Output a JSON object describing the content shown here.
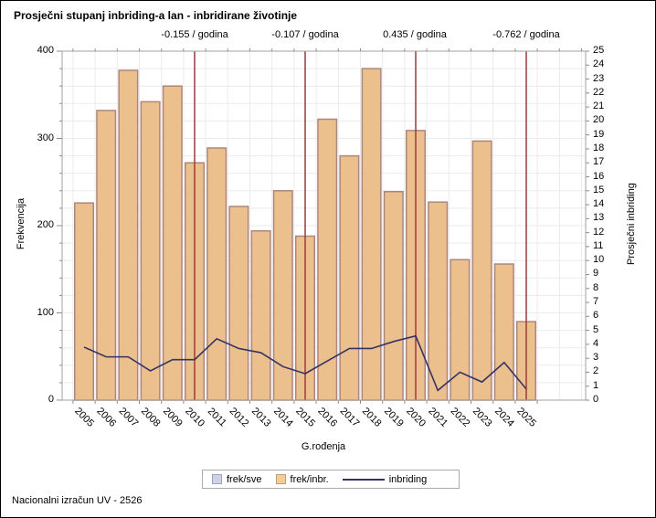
{
  "title": "Prosječni stupanj inbriding-a lan - inbridirane životinje",
  "footer": "Nacionalni izračun UV - 2526",
  "colors": {
    "bar_fill": "#ECC08C",
    "bar_border": "#AD867D",
    "line": "#333366",
    "ref_line": "#9C3A3A",
    "grid": "#EBEBEB",
    "frame": "#A0A0A0",
    "tick": "#8C8C8C",
    "legend_sve_fill": "#CDD3E6",
    "legend_sve_border": "#9DA3B8",
    "legend_inbr_fill": "#F5CB97",
    "legend_inbr_border": "#C59A76"
  },
  "legend": {
    "items": [
      {
        "label": "frek/sve",
        "type": "swatch"
      },
      {
        "label": "frek/inbr.",
        "type": "swatch"
      },
      {
        "label": "inbriding",
        "type": "line"
      }
    ]
  },
  "chart_data": {
    "type": "bar",
    "title": "Prosječni stupanj inbriding-a lan - inbridirane životinje",
    "categories": [
      "2005",
      "2006",
      "2007",
      "2008",
      "2009",
      "2010",
      "2011",
      "2012",
      "2013",
      "2014",
      "2015",
      "2016",
      "2017",
      "2018",
      "2019",
      "2020",
      "2021",
      "2022",
      "2023",
      "2024",
      "2025"
    ],
    "series": [
      {
        "name": "frek/inbr.",
        "type": "bar",
        "axis": "left",
        "values": [
          226,
          332,
          378,
          342,
          360,
          272,
          289,
          222,
          194,
          240,
          188,
          322,
          280,
          380,
          239,
          309,
          227,
          161,
          297,
          156,
          90
        ]
      },
      {
        "name": "inbriding",
        "type": "line",
        "axis": "right",
        "values": [
          3.8,
          3.1,
          3.1,
          2.1,
          2.9,
          2.9,
          4.4,
          3.7,
          3.4,
          2.4,
          1.9,
          2.8,
          3.7,
          3.7,
          4.2,
          4.6,
          0.7,
          2.0,
          1.3,
          2.7,
          0.8
        ]
      }
    ],
    "reference_lines": [
      {
        "category": "2010",
        "label": "-0.155 / godina"
      },
      {
        "category": "2015",
        "label": "-0.107 / godina"
      },
      {
        "category": "2020",
        "label": "0.435 / godina"
      },
      {
        "category": "2025",
        "label": "-0.762 / godina"
      }
    ],
    "x_label": "G.rođenja",
    "y_left": {
      "label": "Frekvencija",
      "min": 0,
      "max": 400,
      "tick_step": 100,
      "minor_step": 20
    },
    "y_right": {
      "label": "Prosječni inbriding",
      "min": 0,
      "max": 25,
      "tick_step": 1
    },
    "grid": true,
    "legend_position": "bottom"
  }
}
